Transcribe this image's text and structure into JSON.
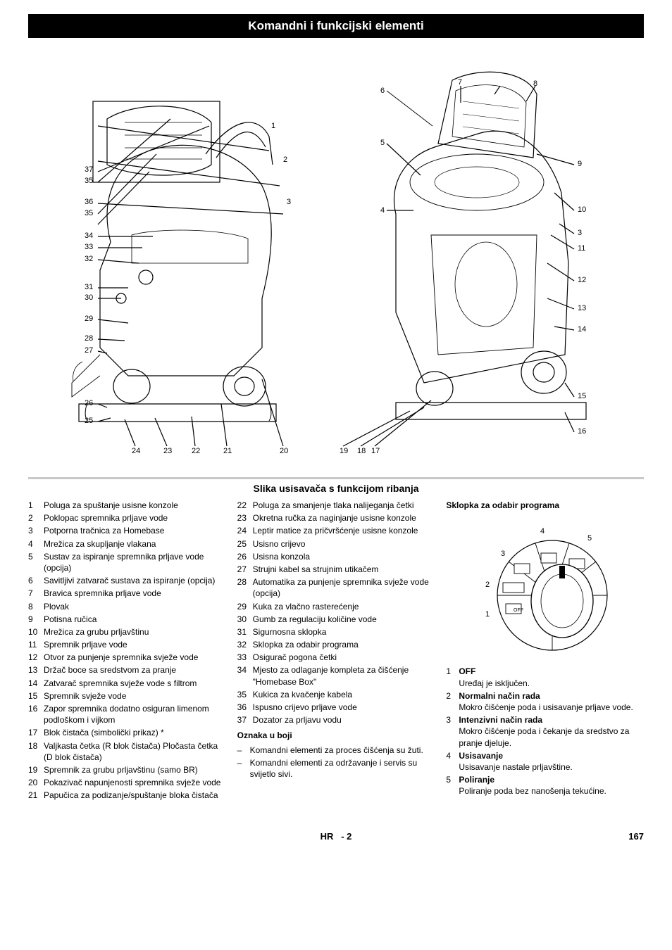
{
  "banner": "Komandni i funkcijski elementi",
  "subbanner": "Slika usisavača s funkcijom ribanja",
  "diagram": {
    "leftNumbers": [
      "1",
      "2",
      "37",
      "35",
      "3",
      "36",
      "35",
      "34",
      "33",
      "32",
      "31",
      "30",
      "29",
      "28",
      "27",
      "26",
      "25"
    ],
    "bottomNumbers": [
      "24",
      "23",
      "22",
      "21",
      "20",
      "19",
      "18",
      "17"
    ],
    "topNumbers": [
      "5",
      "6",
      "7",
      "8",
      "4"
    ],
    "rightNumbers": [
      "9",
      "10",
      "3",
      "11",
      "12",
      "13",
      "14",
      "15",
      "16"
    ]
  },
  "legendCol1": [
    {
      "n": "1",
      "t": "Poluga za spuštanje usisne konzole"
    },
    {
      "n": "2",
      "t": "Poklopac spremnika prljave vode"
    },
    {
      "n": "3",
      "t": "Potporna tračnica za Homebase"
    },
    {
      "n": "4",
      "t": "Mrežica za skupljanje vlakana"
    },
    {
      "n": "5",
      "t": "Sustav za ispiranje spremnika prljave vode (opcija)"
    },
    {
      "n": "6",
      "t": "Savitljivi zatvarač sustava za ispiranje (opcija)"
    },
    {
      "n": "7",
      "t": "Bravica spremnika prljave vode"
    },
    {
      "n": "8",
      "t": "Plovak"
    },
    {
      "n": "9",
      "t": "Potisna ručica"
    },
    {
      "n": "10",
      "t": "Mrežica za grubu prljavštinu"
    },
    {
      "n": "11",
      "t": "Spremnik prljave vode"
    },
    {
      "n": "12",
      "t": "Otvor za punjenje spremnika svježe vode"
    },
    {
      "n": "13",
      "t": "Držač boce sa sredstvom za pranje"
    },
    {
      "n": "14",
      "t": "Zatvarač spremnika svježe vode s filtrom"
    },
    {
      "n": "15",
      "t": "Spremnik svježe vode"
    },
    {
      "n": "16",
      "t": "Zapor spremnika dodatno osiguran limenom podloškom i vijkom"
    },
    {
      "n": "17",
      "t": "Blok čistača (simbolički prikaz) *"
    },
    {
      "n": "18",
      "t": "Valjkasta četka (R blok čistača) Pločasta četka (D blok čistača)"
    },
    {
      "n": "19",
      "t": "Spremnik za grubu prljavštinu (samo BR)"
    },
    {
      "n": "20",
      "t": "Pokazivač napunjenosti spremnika svježe vode"
    },
    {
      "n": "21",
      "t": "Papučica za podizanje/spuštanje bloka čistača"
    }
  ],
  "legendCol2": [
    {
      "n": "22",
      "t": "Poluga za smanjenje tlaka nalijeganja četki"
    },
    {
      "n": "23",
      "t": "Okretna ručka za naginjanje usisne konzole"
    },
    {
      "n": "24",
      "t": "Leptir matice za pričvršćenje usisne konzole"
    },
    {
      "n": "25",
      "t": "Usisno crijevo"
    },
    {
      "n": "26",
      "t": "Usisna konzola"
    },
    {
      "n": "27",
      "t": "Strujni kabel sa strujnim utikačem"
    },
    {
      "n": "28",
      "t": "Automatika za punjenje spremnika svježe vode (opcija)"
    },
    {
      "n": "29",
      "t": "Kuka za vlačno rasterećenje"
    },
    {
      "n": "30",
      "t": "Gumb za regulaciju količine vode"
    },
    {
      "n": "31",
      "t": "Sigurnosna sklopka"
    },
    {
      "n": "32",
      "t": "Sklopka za odabir programa"
    },
    {
      "n": "33",
      "t": "Osigurač pogona četki"
    },
    {
      "n": "34",
      "t": "Mjesto za odlaganje kompleta za čišće­nje \"Homebase Box\""
    },
    {
      "n": "35",
      "t": "Kukica za kvačenje kabela"
    },
    {
      "n": "36",
      "t": "Ispusno crijevo prljave vode"
    },
    {
      "n": "37",
      "t": "Dozator za prljavu vodu"
    }
  ],
  "colorHead": "Oznaka u boji",
  "colorNotes": [
    "Komandni elementi za proces čišćenja su žuti.",
    "Komandni elementi za održavanje i ser­vis su svijetlo sivi."
  ],
  "col3Head": "Sklopka za odabir programa",
  "dial": {
    "labels": [
      "1",
      "2",
      "3",
      "4",
      "5"
    ],
    "off": "OFF"
  },
  "modes": [
    {
      "n": "1",
      "h": "OFF",
      "t": "Uređaj je isključen."
    },
    {
      "n": "2",
      "h": "Normalni način rada",
      "t": "Mokro čišćenje poda i usisavanje prlja­ve vode."
    },
    {
      "n": "3",
      "h": "Intenzivni način rada",
      "t": "Mokro čišćenje poda i čekanje da sred­stvo za pranje djeluje."
    },
    {
      "n": "4",
      "h": "Usisavanje",
      "t": "Usisavanje nastale prljavštine."
    },
    {
      "n": "5",
      "h": "Poliranje",
      "t": "Poliranje poda bez nanošenja tekućine."
    }
  ],
  "footer": {
    "lang": "HR",
    "page": "2",
    "abs": "167",
    "sep": "-"
  }
}
